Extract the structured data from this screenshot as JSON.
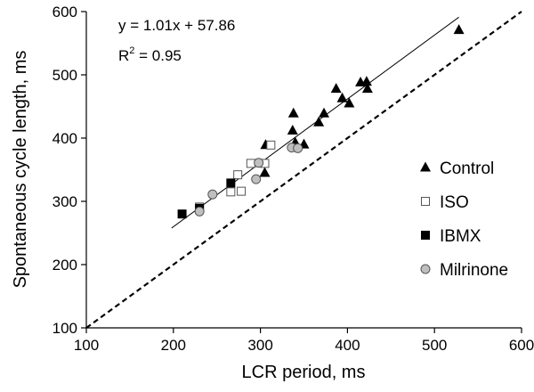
{
  "chart_data": {
    "type": "scatter",
    "xlabel": "LCR period, ms",
    "ylabel": "Spontaneous cycle length, ms",
    "xlim": [
      100,
      600
    ],
    "ylim": [
      100,
      600
    ],
    "x_ticks": [
      "100",
      "200",
      "300",
      "400",
      "500",
      "600"
    ],
    "y_ticks": [
      "100",
      "200",
      "300",
      "400",
      "500",
      "600"
    ],
    "grid": false,
    "legend_position": "right",
    "annotations": {
      "equation": "y = 1.01x + 57.86",
      "r2_prefix": "R",
      "r2_sup": "2",
      "r2_value": " = 0.95"
    },
    "fit_line": {
      "slope": 1.01,
      "intercept": 57.86,
      "x_range": [
        198,
        528
      ],
      "style": "solid"
    },
    "identity_line": {
      "slope": 1,
      "intercept": 0,
      "style": "dashed"
    },
    "series": [
      {
        "name": "Control",
        "marker": "triangle",
        "color": "#000000",
        "points": [
          [
            528,
            571
          ],
          [
            338,
            439
          ],
          [
            337,
            412
          ],
          [
            387,
            478
          ],
          [
            394,
            463
          ],
          [
            402,
            455
          ],
          [
            373,
            439
          ],
          [
            367,
            425
          ],
          [
            415,
            488
          ],
          [
            422,
            489
          ],
          [
            423,
            478
          ],
          [
            340,
            393
          ],
          [
            350,
            390
          ],
          [
            306,
            389
          ],
          [
            305,
            345
          ]
        ]
      },
      {
        "name": "ISO",
        "marker": "square-open",
        "color": "#ffffff",
        "points": [
          [
            312,
            389
          ],
          [
            305,
            360
          ],
          [
            289,
            360
          ],
          [
            274,
            342
          ],
          [
            278,
            316
          ],
          [
            266,
            315
          ],
          [
            230,
            291
          ]
        ]
      },
      {
        "name": "IBMX",
        "marker": "square-filled",
        "color": "#000000",
        "points": [
          [
            210,
            280
          ],
          [
            266,
            329
          ],
          [
            230,
            289
          ]
        ]
      },
      {
        "name": "Milrinone",
        "marker": "circle",
        "color": "#bfbfbf",
        "points": [
          [
            298,
            361
          ],
          [
            295,
            335
          ],
          [
            245,
            311
          ],
          [
            230,
            284
          ],
          [
            336,
            385
          ],
          [
            343,
            384
          ]
        ]
      }
    ]
  }
}
